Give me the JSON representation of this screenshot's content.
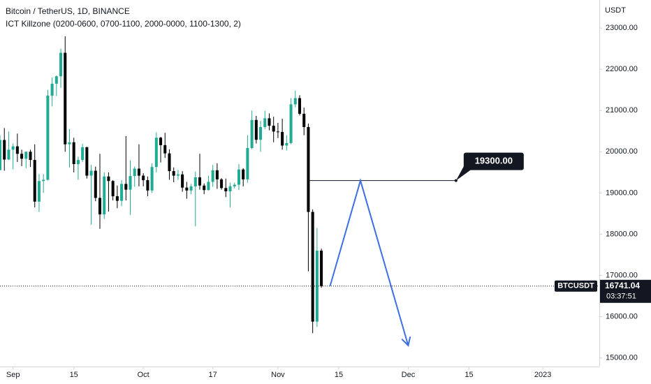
{
  "chart_data": {
    "type": "candlestick",
    "title": "Bitcoin / TetherUS, 1D, BINANCE",
    "indicator": "ICT Killzone (0200-0600, 0700-1100, 2000-0000, 1100-1300, 2)",
    "y_axis_label": "USDT",
    "symbol": "BTCUSDT",
    "countdown": "03:37:51",
    "up_color": "#22ab94",
    "down_color": "#000000",
    "x": [
      "Aug 29",
      "Aug 30",
      "Aug 31",
      "Sep 1",
      "Sep 2",
      "Sep 3",
      "Sep 4",
      "Sep 5",
      "Sep 6",
      "Sep 7",
      "Sep 8",
      "Sep 9",
      "Sep 10",
      "Sep 11",
      "Sep 12",
      "Sep 13",
      "Sep 14",
      "Sep 15",
      "Sep 16",
      "Sep 17",
      "Sep 18",
      "Sep 19",
      "Sep 20",
      "Sep 21",
      "Sep 22",
      "Sep 23",
      "Sep 24",
      "Sep 25",
      "Sep 26",
      "Sep 27",
      "Sep 28",
      "Sep 29",
      "Sep 30",
      "Oct 1",
      "Oct 2",
      "Oct 3",
      "Oct 4",
      "Oct 5",
      "Oct 6",
      "Oct 7",
      "Oct 8",
      "Oct 9",
      "Oct 10",
      "Oct 11",
      "Oct 12",
      "Oct 13",
      "Oct 14",
      "Oct 15",
      "Oct 16",
      "Oct 17",
      "Oct 18",
      "Oct 19",
      "Oct 20",
      "Oct 21",
      "Oct 22",
      "Oct 23",
      "Oct 24",
      "Oct 25",
      "Oct 26",
      "Oct 27",
      "Oct 28",
      "Oct 29",
      "Oct 30",
      "Oct 31",
      "Nov 1",
      "Nov 2",
      "Nov 3",
      "Nov 4",
      "Nov 5",
      "Nov 6",
      "Nov 7",
      "Nov 8",
      "Nov 9",
      "Nov 10",
      "Nov 11"
    ],
    "open": [
      19555,
      20285,
      19810,
      20050,
      20130,
      19950,
      19830,
      20000,
      19800,
      18790,
      19290,
      19320,
      21360,
      21650,
      21830,
      22400,
      20180,
      20230,
      19700,
      19800,
      20110,
      19420,
      19540,
      18880,
      18480,
      19400,
      19290,
      18920,
      18810,
      19220,
      19080,
      19410,
      19590,
      19420,
      19310,
      19060,
      19630,
      20340,
      20160,
      19960,
      19530,
      19420,
      19450,
      19130,
      19060,
      19160,
      19380,
      19180,
      19070,
      19270,
      19550,
      19330,
      19120,
      19040,
      19160,
      19200,
      19570,
      19330,
      20090,
      20770,
      20290,
      20600,
      20810,
      20630,
      20490,
      20480,
      20150,
      20210,
      21150,
      21300,
      20920,
      20600,
      18540,
      15880,
      17600
    ],
    "high": [
      20400,
      20575,
      20490,
      20200,
      20440,
      20050,
      20000,
      20050,
      20180,
      19460,
      19460,
      21500,
      21800,
      21850,
      22500,
      22800,
      20550,
      20340,
      19880,
      20190,
      20120,
      19680,
      19640,
      19950,
      19500,
      19500,
      19310,
      19180,
      19310,
      20380,
      19790,
      19640,
      20180,
      19480,
      19400,
      19720,
      20470,
      20360,
      20460,
      20060,
      19620,
      19560,
      19530,
      19270,
      19220,
      19520,
      19950,
      19230,
      19420,
      19680,
      19720,
      19360,
      19350,
      19250,
      19250,
      19700,
      19600,
      20400,
      21000,
      20870,
      20750,
      20990,
      20930,
      20850,
      20700,
      20800,
      20400,
      21300,
      21480,
      21370,
      21070,
      20680,
      18600,
      18150,
      17650
    ],
    "low": [
      19550,
      19540,
      19800,
      19570,
      19750,
      19650,
      19600,
      19630,
      18650,
      18540,
      19000,
      19300,
      21100,
      21350,
      21550,
      20000,
      19620,
      19500,
      19320,
      19750,
      19350,
      18230,
      18800,
      18130,
      18370,
      18550,
      18820,
      18630,
      18680,
      18820,
      18470,
      19150,
      19160,
      19160,
      18920,
      19000,
      19500,
      19740,
      19850,
      19320,
      19260,
      19320,
      19030,
      18860,
      18970,
      18190,
      19080,
      18970,
      19060,
      19150,
      19100,
      19080,
      18900,
      18650,
      19110,
      19070,
      19160,
      19250,
      20060,
      20200,
      20000,
      20550,
      20520,
      20230,
      20330,
      20050,
      20030,
      20180,
      21080,
      20880,
      20400,
      17100,
      15600,
      15750,
      16700
    ],
    "close": [
      20285,
      19810,
      20050,
      20130,
      19950,
      19830,
      20000,
      19800,
      18790,
      19290,
      19320,
      21360,
      21650,
      21830,
      22400,
      20180,
      20230,
      19700,
      19800,
      20110,
      19420,
      19540,
      18880,
      18480,
      19400,
      19290,
      18920,
      18810,
      19220,
      19080,
      19410,
      19590,
      19420,
      19310,
      19060,
      19630,
      20340,
      20160,
      19960,
      19530,
      19420,
      19450,
      19130,
      19060,
      19160,
      19380,
      19180,
      19070,
      19270,
      19550,
      19330,
      19120,
      19040,
      19160,
      19200,
      19570,
      19330,
      20090,
      20770,
      20290,
      20600,
      20810,
      20630,
      20490,
      20480,
      20150,
      20210,
      21150,
      21300,
      20920,
      20600,
      18540,
      15880,
      17600,
      16741.04
    ],
    "xlim": [
      "Aug 29",
      "Jan 14"
    ],
    "xticks": [
      {
        "value": "Sep 1",
        "label": "Sep"
      },
      {
        "value": "Sep 15",
        "label": "15"
      },
      {
        "value": "Oct 1",
        "label": "Oct"
      },
      {
        "value": "Oct 17",
        "label": "17"
      },
      {
        "value": "Nov 1",
        "label": "Nov"
      },
      {
        "value": "Nov 15",
        "label": "15"
      },
      {
        "value": "Dec 1",
        "label": "Dec"
      },
      {
        "value": "Dec 15",
        "label": "15"
      },
      {
        "value": "Jan 1",
        "label": "2023"
      }
    ],
    "ylim": [
      14790,
      23680
    ],
    "yticks": [
      {
        "value": 15000,
        "label": "15000.00"
      },
      {
        "value": 16000,
        "label": "16000.00"
      },
      {
        "value": 17000,
        "label": "17000.00"
      },
      {
        "value": 18000,
        "label": "18000.00"
      },
      {
        "value": 19000,
        "label": "19000.00"
      },
      {
        "value": 20000,
        "label": "20000.00"
      },
      {
        "value": 21000,
        "label": "21000.00"
      },
      {
        "value": 22000,
        "label": "22000.00"
      },
      {
        "value": 23000,
        "label": "23000.00"
      }
    ],
    "grid": false,
    "level": {
      "x": [
        "Nov 8",
        "Dec 12"
      ],
      "value": 19300,
      "label": "19300.00"
    },
    "projection": {
      "x": [
        "Nov 13",
        "Nov 20",
        "Dec 1"
      ],
      "values": [
        16741,
        19300,
        15300
      ],
      "color": "#3d6fe0"
    }
  }
}
